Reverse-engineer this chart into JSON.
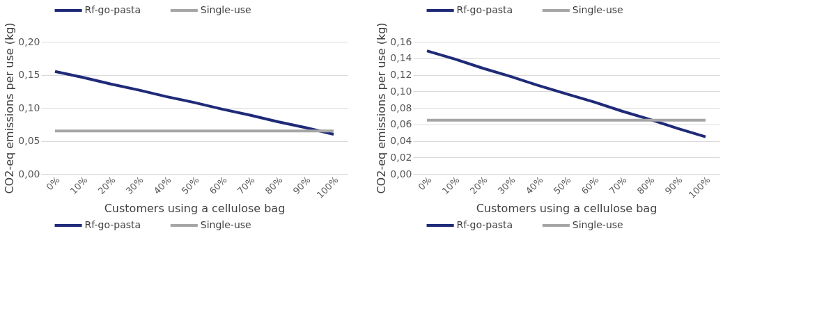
{
  "chart_data": [
    {
      "type": "line",
      "xlabel": "Customers using a cellulose bag",
      "ylabel": "CO2-eq emissions per use (kg)",
      "categories": [
        "0%",
        "10%",
        "20%",
        "30%",
        "40%",
        "50%",
        "60%",
        "70%",
        "80%",
        "90%",
        "100%"
      ],
      "series": [
        {
          "name": "Rf-go-pasta",
          "color": "#1f2a78",
          "values": [
            0.155,
            0.146,
            0.136,
            0.127,
            0.117,
            0.108,
            0.098,
            0.089,
            0.079,
            0.07,
            0.06
          ]
        },
        {
          "name": "Single-use",
          "color": "#a6a6a6",
          "values": [
            0.065,
            0.065,
            0.065,
            0.065,
            0.065,
            0.065,
            0.065,
            0.065,
            0.065,
            0.065,
            0.065
          ]
        }
      ],
      "ylim": [
        0,
        0.2
      ],
      "yticks": [
        {
          "value": 0,
          "label": "0,00"
        },
        {
          "value": 0.05,
          "label": "0,05"
        },
        {
          "value": 0.1,
          "label": "0,10"
        },
        {
          "value": 0.15,
          "label": "0,15"
        },
        {
          "value": 0.2,
          "label": "0,20"
        }
      ],
      "grid": "y",
      "legend": [
        "top",
        "bottom"
      ],
      "marker": "none",
      "line_style": "solid"
    },
    {
      "type": "line",
      "xlabel": "Customers using a cellulose bag",
      "ylabel": "CO2-eq emissions per use (kg)",
      "categories": [
        "0%",
        "10%",
        "20%",
        "30%",
        "40%",
        "50%",
        "60%",
        "70%",
        "80%",
        "90%",
        "100%"
      ],
      "series": [
        {
          "name": "Rf-go-pasta",
          "color": "#1f2a78",
          "values": [
            0.149,
            0.139,
            0.128,
            0.118,
            0.107,
            0.097,
            0.087,
            0.076,
            0.066,
            0.055,
            0.045
          ]
        },
        {
          "name": "Single-use",
          "color": "#a6a6a6",
          "values": [
            0.065,
            0.065,
            0.065,
            0.065,
            0.065,
            0.065,
            0.065,
            0.065,
            0.065,
            0.065,
            0.065
          ]
        }
      ],
      "ylim": [
        0,
        0.16
      ],
      "yticks": [
        {
          "value": 0,
          "label": "0,00"
        },
        {
          "value": 0.02,
          "label": "0,02"
        },
        {
          "value": 0.04,
          "label": "0,04"
        },
        {
          "value": 0.06,
          "label": "0,06"
        },
        {
          "value": 0.08,
          "label": "0,08"
        },
        {
          "value": 0.1,
          "label": "0,10"
        },
        {
          "value": 0.12,
          "label": "0,12"
        },
        {
          "value": 0.14,
          "label": "0,14"
        },
        {
          "value": 0.16,
          "label": "0,16"
        }
      ],
      "grid": "y",
      "legend": [
        "top",
        "bottom"
      ],
      "marker": "none",
      "line_style": "solid"
    }
  ]
}
